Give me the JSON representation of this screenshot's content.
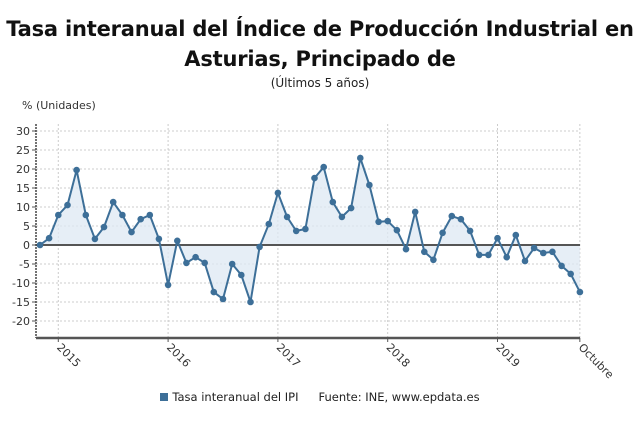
{
  "header": {
    "title_line1": "Tasa interanual del Índice de Producción Industrial en",
    "title_line2": "Asturias, Principado de",
    "subtitle": "(Últimos 5 años)",
    "y_unit_label": "% (Unidades)"
  },
  "legend": {
    "series_label": "Tasa interanual del IPI",
    "source": "Fuente: INE, www.epdata.es"
  },
  "colors": {
    "line": "#3d6f98",
    "fill": "#dde8f3",
    "zero_line": "#555555",
    "grid": "#cccccc"
  },
  "chart_data": {
    "type": "area",
    "title": "Tasa interanual del Índice de Producción Industrial en Asturias, Principado de",
    "subtitle": "(Últimos 5 años)",
    "xlabel": "",
    "ylabel": "% (Unidades)",
    "ylim": [
      -24.5,
      32
    ],
    "yticks": [
      30,
      25,
      20,
      15,
      10,
      5,
      0,
      -5,
      -10,
      -15,
      -20
    ],
    "xtick_labels": [
      "2015",
      "2016",
      "2017",
      "2018",
      "2019",
      "Octubre"
    ],
    "xtick_index": [
      2,
      14,
      26,
      38,
      50,
      59
    ],
    "grid": true,
    "legend_position": "bottom",
    "x": [
      "2014-11",
      "2014-12",
      "2015-01",
      "2015-02",
      "2015-03",
      "2015-04",
      "2015-05",
      "2015-06",
      "2015-07",
      "2015-08",
      "2015-09",
      "2015-10",
      "2015-11",
      "2015-12",
      "2016-01",
      "2016-02",
      "2016-03",
      "2016-04",
      "2016-05",
      "2016-06",
      "2016-07",
      "2016-08",
      "2016-09",
      "2016-10",
      "2016-11",
      "2016-12",
      "2017-01",
      "2017-02",
      "2017-03",
      "2017-04",
      "2017-05",
      "2017-06",
      "2017-07",
      "2017-08",
      "2017-09",
      "2017-10",
      "2017-11",
      "2017-12",
      "2018-01",
      "2018-02",
      "2018-03",
      "2018-04",
      "2018-05",
      "2018-06",
      "2018-07",
      "2018-08",
      "2018-09",
      "2018-10",
      "2018-11",
      "2018-12",
      "2019-01",
      "2019-02",
      "2019-03",
      "2019-04",
      "2019-05",
      "2019-06",
      "2019-07",
      "2019-08",
      "2019-09",
      "2019-10"
    ],
    "series": [
      {
        "name": "Tasa interanual del IPI",
        "values": [
          0,
          1.8,
          7.9,
          10.5,
          19.7,
          7.9,
          1.6,
          4.7,
          11.3,
          7.9,
          3.4,
          6.8,
          7.9,
          1.6,
          -10.5,
          1.1,
          -4.7,
          -3.2,
          -4.7,
          -12.4,
          -14.2,
          -5.0,
          -7.9,
          -15.0,
          -0.5,
          5.5,
          13.7,
          7.4,
          3.7,
          4.2,
          17.6,
          20.5,
          11.3,
          7.4,
          9.7,
          22.9,
          15.8,
          6.1,
          6.3,
          3.9,
          -1.1,
          8.7,
          -1.8,
          -3.9,
          3.2,
          7.6,
          6.8,
          3.7,
          -2.6,
          -2.6,
          1.8,
          -3.2,
          2.6,
          -4.2,
          -0.8,
          -2.1,
          -1.8,
          -5.5,
          -7.6,
          -12.4
        ]
      }
    ]
  }
}
